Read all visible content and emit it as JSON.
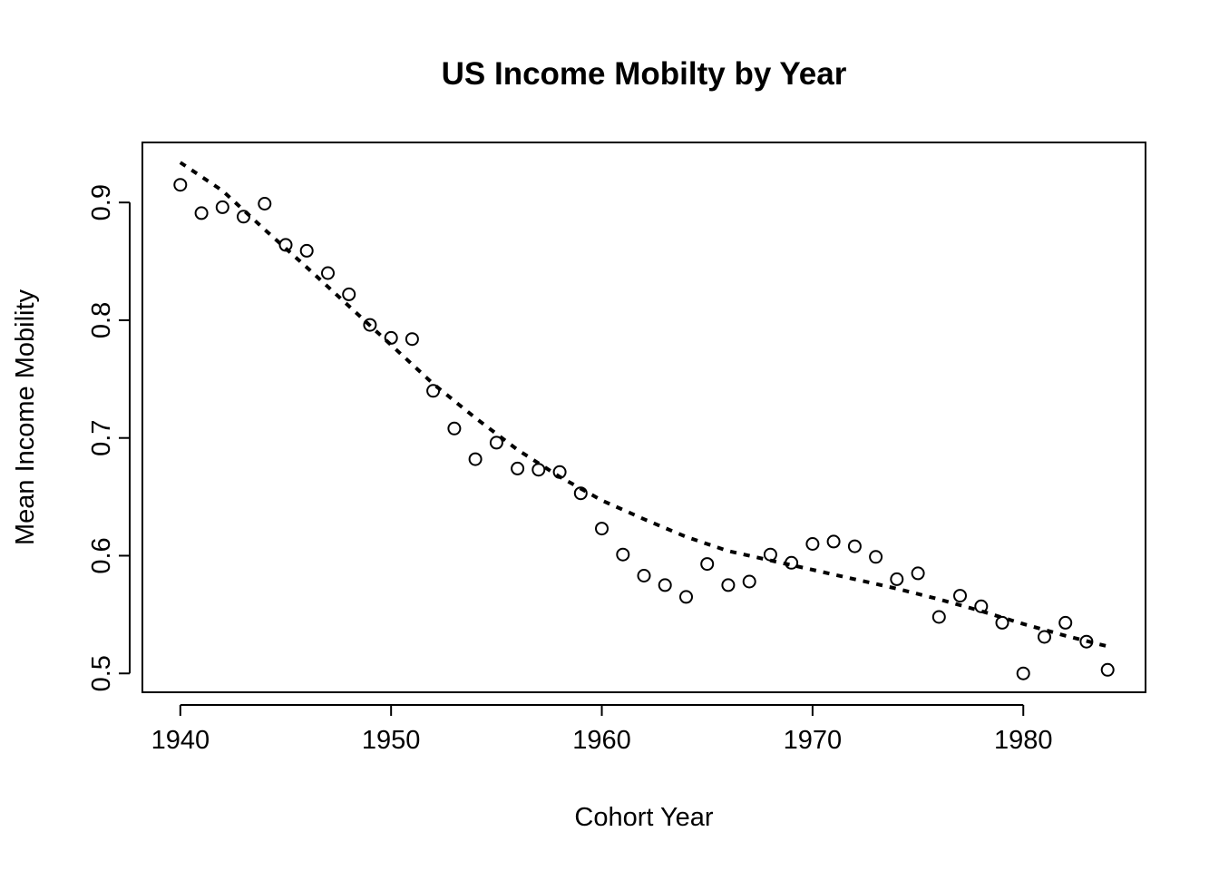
{
  "chart_data": {
    "type": "scatter",
    "title": "US Income Mobilty by Year",
    "xlabel": "Cohort Year",
    "ylabel": "Mean Income Mobility",
    "xlim": [
      1938.2,
      1985.8
    ],
    "ylim": [
      0.484,
      0.951
    ],
    "xticks": [
      1940,
      1950,
      1960,
      1970,
      1980
    ],
    "yticks": [
      0.5,
      0.6,
      0.7,
      0.8,
      0.9
    ],
    "xtick_labels": [
      "1940",
      "1950",
      "1960",
      "1970",
      "1980"
    ],
    "ytick_labels": [
      "0.5",
      "0.6",
      "0.7",
      "0.8",
      "0.9"
    ],
    "grid": false,
    "legend": "none",
    "series": [
      {
        "kind": "points",
        "marker": "open-circle",
        "x": [
          1940,
          1941,
          1942,
          1943,
          1944,
          1945,
          1946,
          1947,
          1948,
          1949,
          1950,
          1951,
          1952,
          1953,
          1954,
          1955,
          1956,
          1957,
          1958,
          1959,
          1960,
          1961,
          1962,
          1963,
          1964,
          1965,
          1966,
          1967,
          1968,
          1969,
          1970,
          1971,
          1972,
          1973,
          1974,
          1975,
          1976,
          1977,
          1978,
          1979,
          1980,
          1981,
          1982,
          1983,
          1984
        ],
        "y": [
          0.915,
          0.891,
          0.896,
          0.888,
          0.899,
          0.864,
          0.859,
          0.84,
          0.822,
          0.796,
          0.785,
          0.784,
          0.74,
          0.708,
          0.682,
          0.696,
          0.674,
          0.673,
          0.671,
          0.653,
          0.623,
          0.601,
          0.583,
          0.575,
          0.565,
          0.593,
          0.575,
          0.578,
          0.601,
          0.594,
          0.61,
          0.612,
          0.608,
          0.599,
          0.58,
          0.585,
          0.548,
          0.566,
          0.557,
          0.543,
          0.5,
          0.531,
          0.543,
          0.527,
          0.503
        ]
      },
      {
        "kind": "line",
        "style": "dashed",
        "x": [
          1940,
          1942,
          1944,
          1946,
          1948,
          1950,
          1952,
          1954,
          1956,
          1958,
          1960,
          1962,
          1964,
          1966,
          1968,
          1970,
          1972,
          1974,
          1976,
          1978,
          1980,
          1982,
          1984
        ],
        "y": [
          0.934,
          0.91,
          0.877,
          0.845,
          0.812,
          0.779,
          0.746,
          0.717,
          0.69,
          0.667,
          0.647,
          0.631,
          0.616,
          0.604,
          0.596,
          0.588,
          0.58,
          0.572,
          0.563,
          0.553,
          0.542,
          0.532,
          0.523
        ]
      }
    ]
  }
}
